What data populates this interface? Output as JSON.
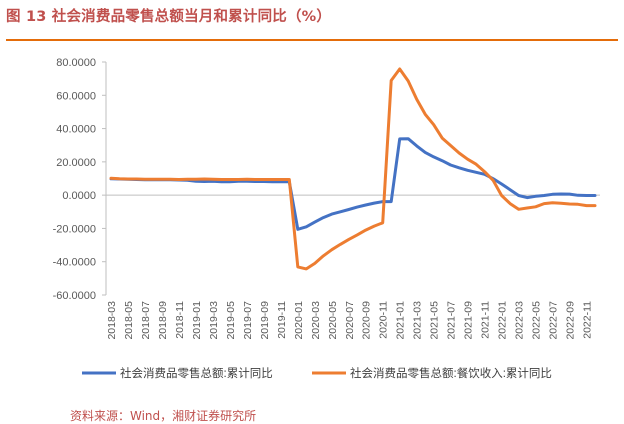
{
  "title": "图 13 社会消费品零售总额当月和累计同比（%）",
  "source": "资料来源：Wind，湘财证券研究所",
  "chart_data": {
    "type": "line",
    "title": "图 13 社会消费品零售总额当月和累计同比（%）",
    "xlabel": "",
    "ylabel": "",
    "ylim": [
      -60,
      80
    ],
    "yticks": [
      "80.0000",
      "60.0000",
      "40.0000",
      "20.0000",
      "0.0000",
      "-20.0000",
      "-40.0000",
      "-60.0000"
    ],
    "xticks": [
      "2018-03",
      "2018-05",
      "2018-07",
      "2018-09",
      "2018-11",
      "2019-01",
      "2019-03",
      "2019-05",
      "2019-07",
      "2019-09",
      "2019-11",
      "2020-01",
      "2020-03",
      "2020-05",
      "2020-07",
      "2020-09",
      "2020-11",
      "2021-01",
      "2021-03",
      "2021-05",
      "2021-07",
      "2021-09",
      "2021-11",
      "2022-01",
      "2022-03",
      "2022-05",
      "2022-07",
      "2022-09",
      "2022-11"
    ],
    "grid": false,
    "legend_position": "bottom",
    "x": [
      "2018-03",
      "2018-04",
      "2018-05",
      "2018-06",
      "2018-07",
      "2018-08",
      "2018-09",
      "2018-10",
      "2018-11",
      "2018-12",
      "2019-01",
      "2019-02",
      "2019-03",
      "2019-04",
      "2019-05",
      "2019-06",
      "2019-07",
      "2019-08",
      "2019-09",
      "2019-10",
      "2019-11",
      "2019-12",
      "2020-01",
      "2020-02",
      "2020-03",
      "2020-04",
      "2020-05",
      "2020-06",
      "2020-07",
      "2020-08",
      "2020-09",
      "2020-10",
      "2020-11",
      "2020-12",
      "2021-01",
      "2021-02",
      "2021-03",
      "2021-04",
      "2021-05",
      "2021-06",
      "2021-07",
      "2021-08",
      "2021-09",
      "2021-10",
      "2021-11",
      "2021-12",
      "2022-01",
      "2022-02",
      "2022-03",
      "2022-04",
      "2022-05",
      "2022-06",
      "2022-07",
      "2022-08",
      "2022-09",
      "2022-10",
      "2022-11",
      "2022-12"
    ],
    "series": [
      {
        "name": "社会消费品零售总额:累计同比",
        "color": "#4472c4",
        "values": [
          9.8,
          9.7,
          9.5,
          9.4,
          9.3,
          9.3,
          9.3,
          9.2,
          9.1,
          9.0,
          8.4,
          8.2,
          8.3,
          8.1,
          8.1,
          8.4,
          8.3,
          8.2,
          8.2,
          8.1,
          8.0,
          8.0,
          -20.5,
          -19.0,
          -16.2,
          -13.5,
          -11.4,
          -10.0,
          -8.6,
          -7.2,
          -5.9,
          -4.8,
          -3.9,
          -3.9,
          33.8,
          33.9,
          29.6,
          25.7,
          23.0,
          20.7,
          18.1,
          16.4,
          14.9,
          13.7,
          12.5,
          9.9,
          6.7,
          3.3,
          -0.2,
          -1.5,
          -0.7,
          -0.2,
          0.5,
          0.7,
          0.6,
          -0.1,
          -0.2,
          -0.2
        ]
      },
      {
        "name": "社会消费品零售总额:餐饮收入:累计同比",
        "color": "#ed7d31",
        "values": [
          10.1,
          9.8,
          9.7,
          9.7,
          9.6,
          9.6,
          9.6,
          9.5,
          9.4,
          9.5,
          9.6,
          9.7,
          9.5,
          9.4,
          9.4,
          9.4,
          9.5,
          9.4,
          9.4,
          9.4,
          9.4,
          9.4,
          -43.1,
          -44.3,
          -41.0,
          -36.5,
          -32.8,
          -29.6,
          -26.6,
          -23.9,
          -21.0,
          -18.6,
          -16.6,
          68.9,
          75.8,
          68.6,
          57.6,
          48.6,
          42.3,
          34.3,
          29.8,
          25.3,
          21.6,
          18.6,
          14.1,
          8.9,
          -0.2,
          -5.1,
          -8.5,
          -7.7,
          -7.0,
          -5.1,
          -4.6,
          -4.9,
          -5.3,
          -5.5,
          -6.3,
          -6.3
        ]
      }
    ]
  }
}
